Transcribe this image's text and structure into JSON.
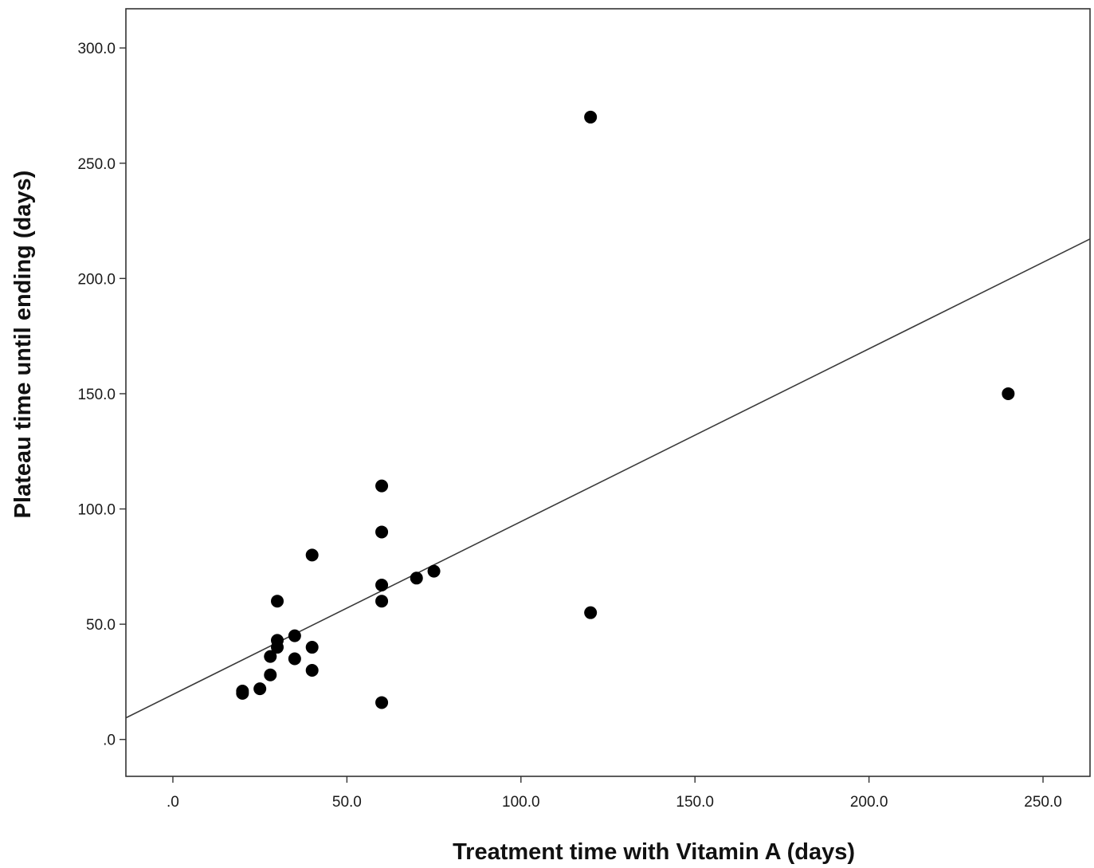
{
  "chart_data": {
    "type": "scatter",
    "title": "",
    "xlabel": "Treatment time with Vitamin A (days)",
    "ylabel": "Plateau time until ending (days)",
    "xlim": [
      -13.5,
      263.5
    ],
    "ylim": [
      -16,
      317
    ],
    "x_ticks": [
      0,
      50,
      100,
      150,
      200,
      250
    ],
    "x_tick_labels": [
      ".0",
      "50.0",
      "100.0",
      "150.0",
      "200.0",
      "250.0"
    ],
    "y_ticks": [
      0,
      50,
      100,
      150,
      200,
      250,
      300
    ],
    "y_tick_labels": [
      ".0",
      "50.0",
      "100.0",
      "150.0",
      "200.0",
      "250.0",
      "300.0"
    ],
    "grid": false,
    "legend": "none",
    "point_color": "#000000",
    "points": [
      {
        "x": 20,
        "y": 20
      },
      {
        "x": 20,
        "y": 21
      },
      {
        "x": 25,
        "y": 22
      },
      {
        "x": 28,
        "y": 28
      },
      {
        "x": 28,
        "y": 36
      },
      {
        "x": 30,
        "y": 40
      },
      {
        "x": 30,
        "y": 43
      },
      {
        "x": 30,
        "y": 60
      },
      {
        "x": 35,
        "y": 35
      },
      {
        "x": 35,
        "y": 45
      },
      {
        "x": 40,
        "y": 30
      },
      {
        "x": 40,
        "y": 40
      },
      {
        "x": 40,
        "y": 80
      },
      {
        "x": 60,
        "y": 16
      },
      {
        "x": 60,
        "y": 60
      },
      {
        "x": 60,
        "y": 67
      },
      {
        "x": 60,
        "y": 90
      },
      {
        "x": 60,
        "y": 110
      },
      {
        "x": 70,
        "y": 70
      },
      {
        "x": 75,
        "y": 73
      },
      {
        "x": 120,
        "y": 55
      },
      {
        "x": 120,
        "y": 270
      },
      {
        "x": 240,
        "y": 150
      }
    ],
    "fit_line": {
      "intercept": 19.5,
      "slope": 0.75
    }
  }
}
